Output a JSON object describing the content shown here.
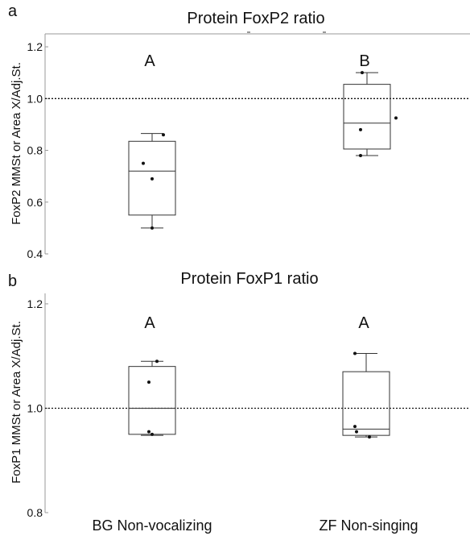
{
  "chart_data": [
    {
      "type": "box",
      "panel_label": "a",
      "title": "Protein FoxP2 ratio",
      "xlabel": "",
      "ylabel": "FoxP2 MMSt or Area X/Adj.St.",
      "ylim": [
        0.4,
        1.25
      ],
      "yticks": [
        "0.4",
        "0.6",
        "0.8",
        "1.0",
        "1.2"
      ],
      "reference_line": 1.0,
      "categories": [
        "BG Non-vocalizing",
        "ZF Non-singing"
      ],
      "boxes": [
        {
          "category": "BG Non-vocalizing",
          "whisker_low": 0.5,
          "q1": 0.55,
          "median": 0.72,
          "q3": 0.835,
          "whisker_high": 0.865,
          "points": [
            0.5,
            0.69,
            0.75,
            0.86
          ],
          "letter": "A"
        },
        {
          "category": "ZF Non-singing",
          "whisker_low": 0.78,
          "q1": 0.805,
          "median": 0.905,
          "q3": 1.055,
          "whisker_high": 1.1,
          "points": [
            0.78,
            0.88,
            0.925,
            1.1
          ],
          "letter": "B"
        }
      ]
    },
    {
      "type": "box",
      "panel_label": "b",
      "title": "Protein FoxP1 ratio",
      "xlabel": "",
      "ylabel": "FoxP1 MMSt or Area X/Adj.St.",
      "ylim": [
        0.8,
        1.22
      ],
      "yticks": [
        "0.8",
        "1.0",
        "1.2"
      ],
      "reference_line": 1.0,
      "categories": [
        "BG Non-vocalizing",
        "ZF Non-singing"
      ],
      "boxes": [
        {
          "category": "BG Non-vocalizing",
          "whisker_low": 0.948,
          "q1": 0.95,
          "median": 1.0,
          "q3": 1.08,
          "whisker_high": 1.09,
          "points": [
            0.95,
            0.955,
            1.05,
            1.09
          ],
          "letter": "A"
        },
        {
          "category": "ZF Non-singing",
          "whisker_low": 0.945,
          "q1": 0.948,
          "median": 0.96,
          "q3": 1.07,
          "whisker_high": 1.105,
          "points": [
            0.945,
            0.955,
            0.965,
            1.105
          ],
          "letter": "A"
        }
      ]
    }
  ]
}
